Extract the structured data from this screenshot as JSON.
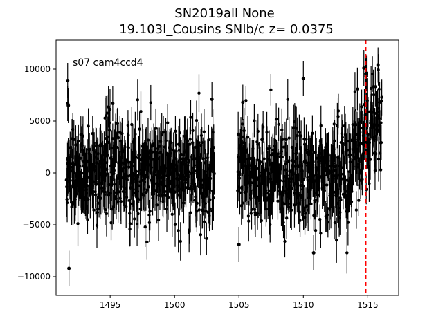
{
  "chart_data": {
    "type": "scatter",
    "title": "SN2019all  None",
    "subtitle": "19.103I_Cousins SNIb/c z= 0.0375",
    "annotation": "s07 cam4ccd4",
    "xlabel": "",
    "ylabel": "",
    "xlim": [
      1490.8,
      1517.4
    ],
    "ylim": [
      -11800,
      12800
    ],
    "xticks": [
      1495,
      1500,
      1505,
      1510,
      1515
    ],
    "yticks": [
      -10000,
      -5000,
      0,
      5000,
      10000
    ],
    "grid": false,
    "marker_color": "#000000",
    "errorbar_color": "#000000",
    "vline": {
      "x": 1514.85,
      "color": "#ff0000",
      "style": "dashed"
    },
    "segments": [
      {
        "x_start": 1491.6,
        "x_end": 1503.1,
        "cadence": 0.0208,
        "base": 0,
        "slope": 0
      },
      {
        "x_start": 1504.9,
        "x_end": 1516.1,
        "cadence": 0.0208,
        "base": 0,
        "slope": 0,
        "rise_start": 1513.2,
        "rise_level": 5500
      }
    ],
    "highlighted_points": [
      {
        "x": 1491.7,
        "y": 8900
      },
      {
        "x": 1491.7,
        "y": 6700
      },
      {
        "x": 1491.75,
        "y": 6500
      },
      {
        "x": 1491.8,
        "y": -9200
      },
      {
        "x": 1495.2,
        "y": 6700
      },
      {
        "x": 1502.9,
        "y": 7100
      },
      {
        "x": 1505.0,
        "y": -6900
      },
      {
        "x": 1505.3,
        "y": 6800
      },
      {
        "x": 1510.0,
        "y": 9100
      },
      {
        "x": 1510.8,
        "y": -7700
      },
      {
        "x": 1514.7,
        "y": 10100
      },
      {
        "x": 1515.8,
        "y": 10400
      },
      {
        "x": 1514.9,
        "y": 9600
      }
    ],
    "typical_errorbar": 1700,
    "scatter_sigma": 2400
  }
}
